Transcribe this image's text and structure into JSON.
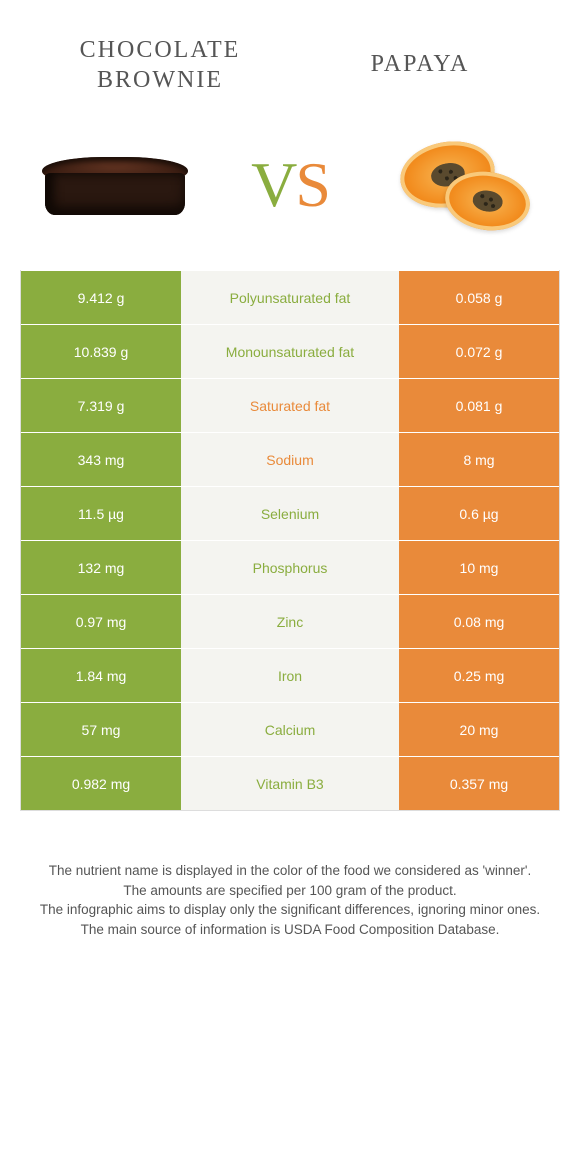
{
  "titles": {
    "left": "CHOCOLATE\nBROWNIE",
    "right": "PAPAYA"
  },
  "vs": {
    "v": "V",
    "s": "S"
  },
  "colors": {
    "left": "#8aad3f",
    "right": "#e98a3a",
    "midBg": "#f4f4f0",
    "labelLeftWinner": "#8aad3f",
    "labelRightWinner": "#e98a3a"
  },
  "rows": [
    {
      "left": "9.412 g",
      "label": "Polyunsaturated fat",
      "right": "0.058 g",
      "winner": "left"
    },
    {
      "left": "10.839 g",
      "label": "Monounsaturated fat",
      "right": "0.072 g",
      "winner": "left"
    },
    {
      "left": "7.319 g",
      "label": "Saturated fat",
      "right": "0.081 g",
      "winner": "right"
    },
    {
      "left": "343 mg",
      "label": "Sodium",
      "right": "8 mg",
      "winner": "right"
    },
    {
      "left": "11.5 µg",
      "label": "Selenium",
      "right": "0.6 µg",
      "winner": "left"
    },
    {
      "left": "132 mg",
      "label": "Phosphorus",
      "right": "10 mg",
      "winner": "left"
    },
    {
      "left": "0.97 mg",
      "label": "Zinc",
      "right": "0.08 mg",
      "winner": "left"
    },
    {
      "left": "1.84 mg",
      "label": "Iron",
      "right": "0.25 mg",
      "winner": "left"
    },
    {
      "left": "57 mg",
      "label": "Calcium",
      "right": "20 mg",
      "winner": "left"
    },
    {
      "left": "0.982 mg",
      "label": "Vitamin B3",
      "right": "0.357 mg",
      "winner": "left"
    }
  ],
  "footer": {
    "l1": "The nutrient name is displayed in the color of the food we considered as 'winner'.",
    "l2": "The amounts are specified per 100 gram of the product.",
    "l3": "The infographic aims to display only the significant differences, ignoring minor ones.",
    "l4": "The main source of information is USDA Food Composition Database."
  }
}
